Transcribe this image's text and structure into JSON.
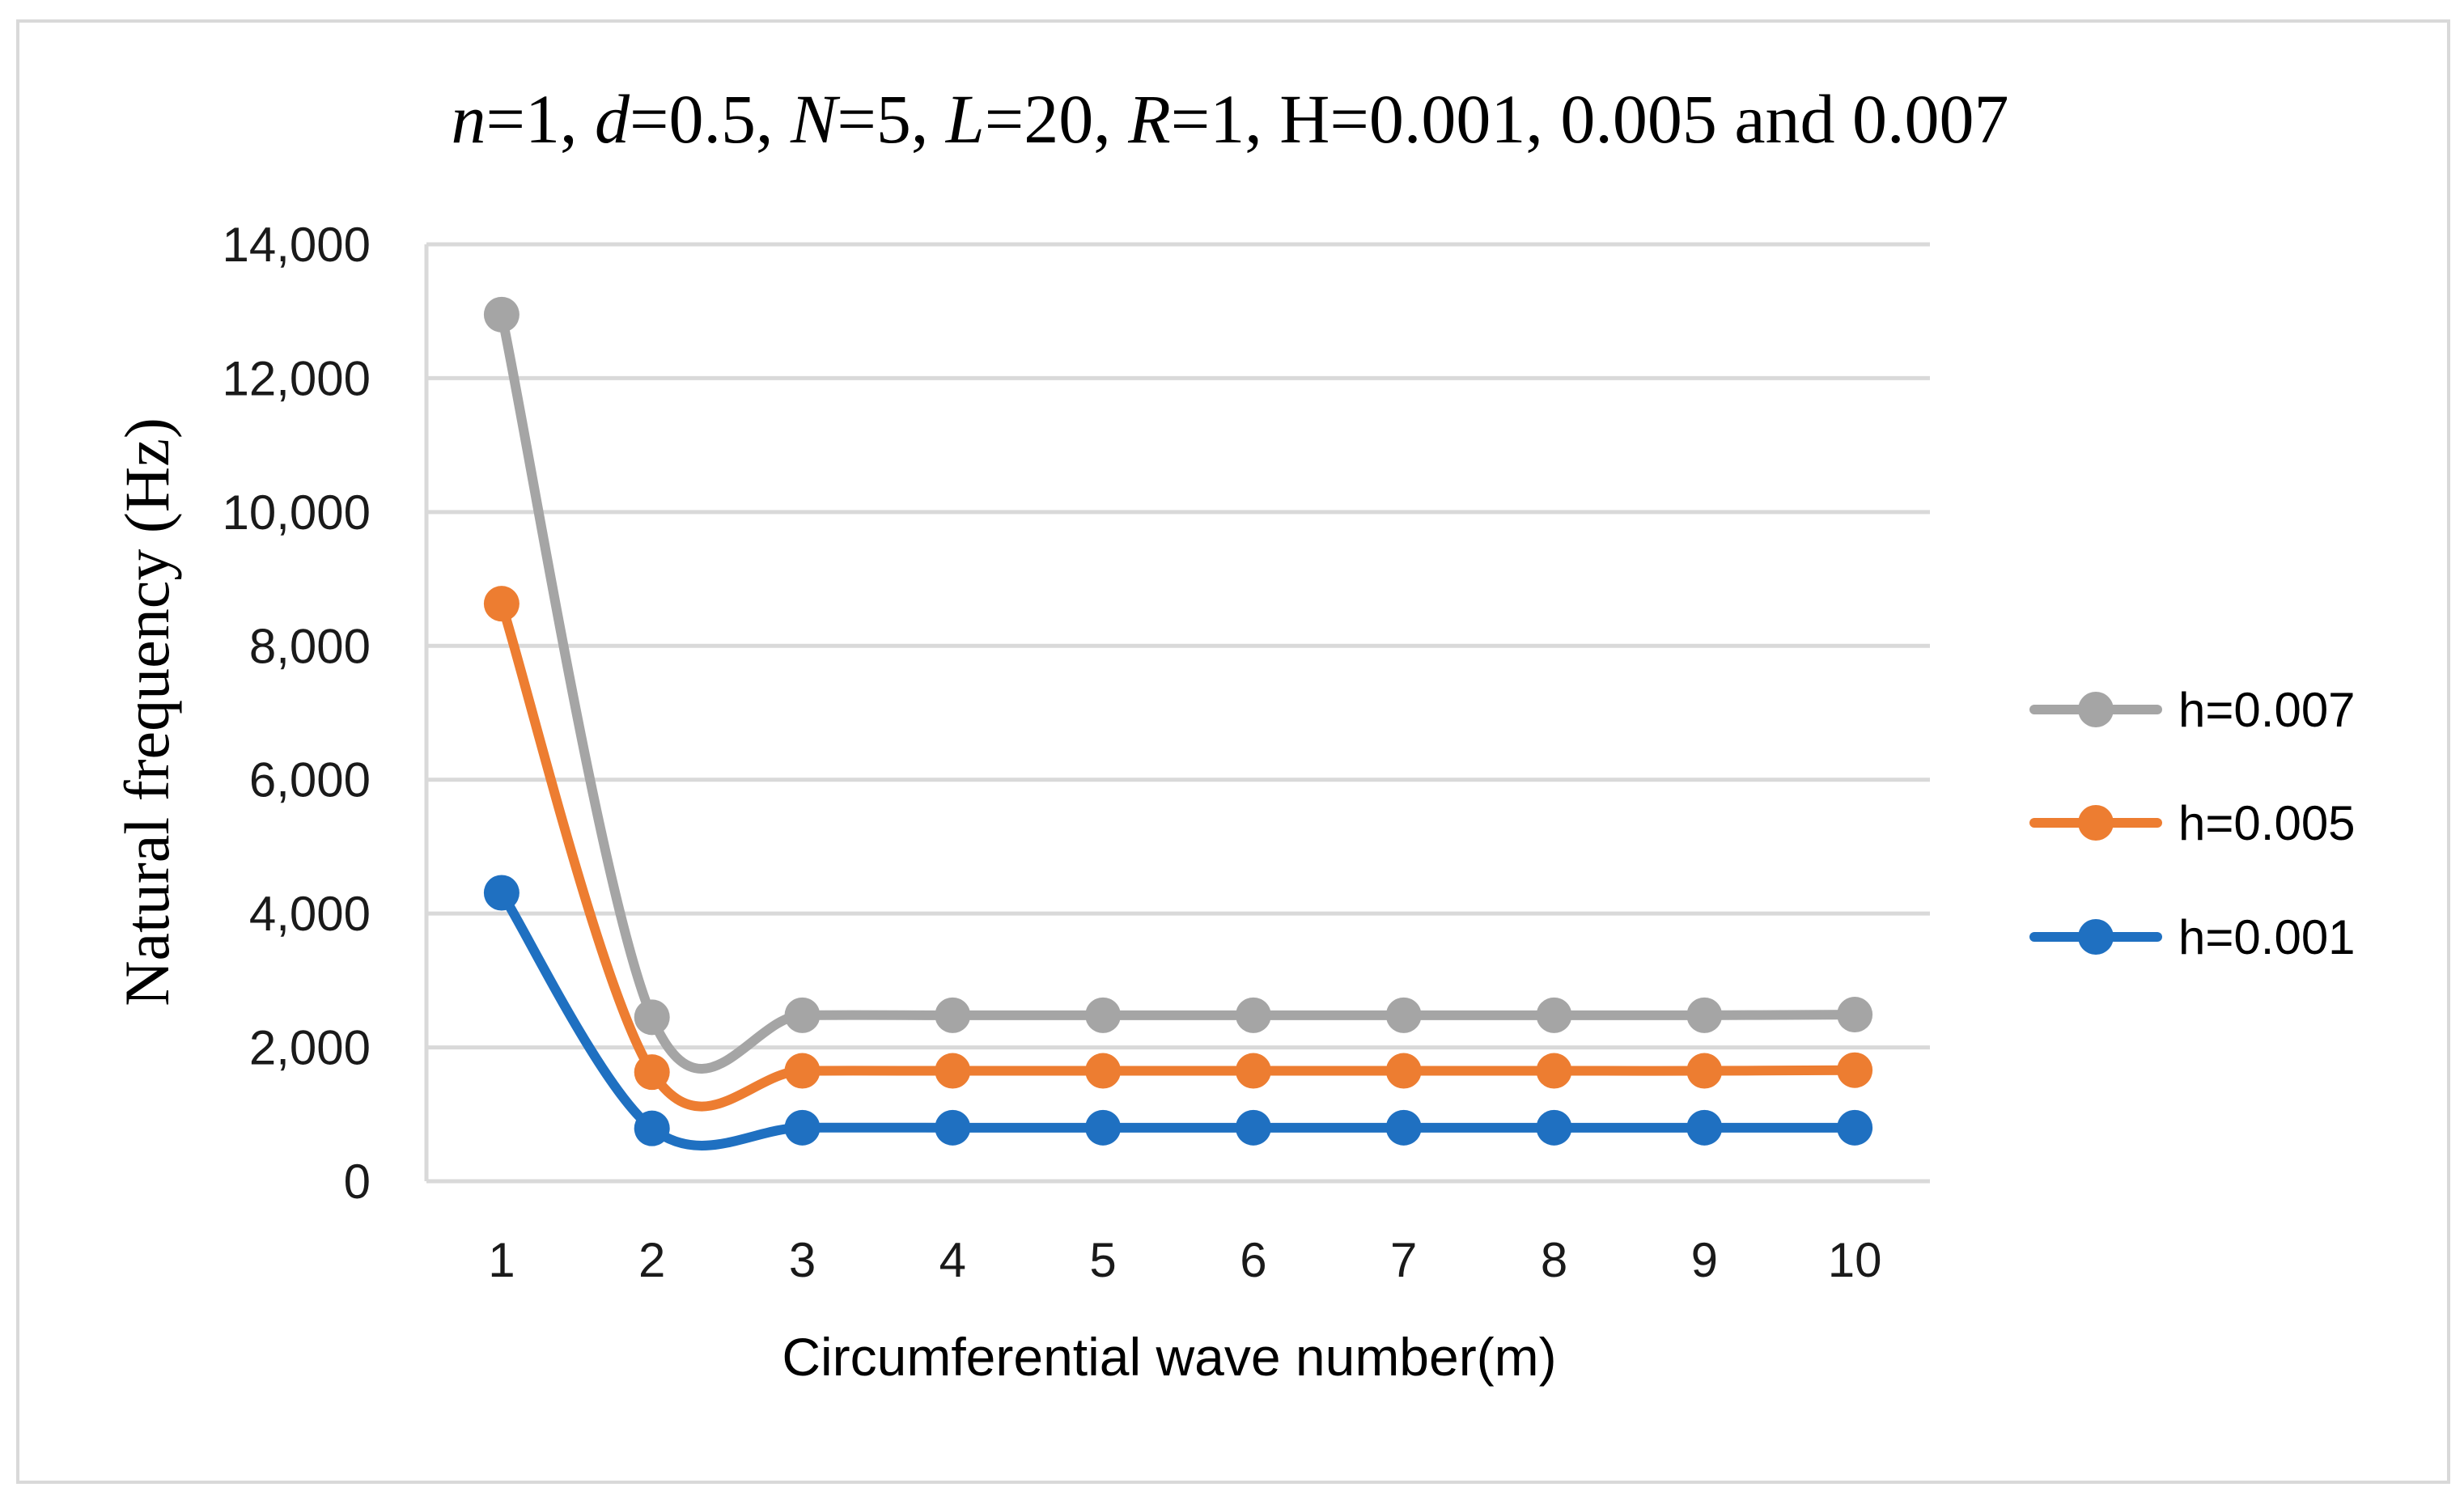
{
  "chart_data": {
    "type": "line",
    "title": {
      "parts": [
        {
          "text": "n",
          "italic": true
        },
        {
          "text": "=1, ",
          "italic": false
        },
        {
          "text": "d",
          "italic": true
        },
        {
          "text": "=0.5, ",
          "italic": false
        },
        {
          "text": "N",
          "italic": true
        },
        {
          "text": "=5, ",
          "italic": false
        },
        {
          "text": "L",
          "italic": true
        },
        {
          "text": "=20, ",
          "italic": false
        },
        {
          "text": "R",
          "italic": true
        },
        {
          "text": "=1, H=0.001, 0.005 and 0.007",
          "italic": false
        }
      ]
    },
    "xlabel": "Circumferential wave number(m)",
    "ylabel": "Natural frequency (Hz)",
    "categories": [
      "1",
      "2",
      "3",
      "4",
      "5",
      "6",
      "7",
      "8",
      "9",
      "10"
    ],
    "ylim": [
      0,
      14000
    ],
    "yticks": [
      0,
      2000,
      4000,
      6000,
      8000,
      10000,
      12000,
      14000
    ],
    "ytick_labels": [
      "0",
      "2,000",
      "4,000",
      "6,000",
      "8,000",
      "10,000",
      "12,000",
      "14,000"
    ],
    "grid": true,
    "legend_position": "right",
    "series": [
      {
        "name": "h=0.007",
        "color": "#a5a5a5",
        "values": [
          12950,
          2450,
          2480,
          2480,
          2480,
          2480,
          2480,
          2480,
          2480,
          2490
        ]
      },
      {
        "name": "h=0.005",
        "color": "#ed7d31",
        "values": [
          8630,
          1630,
          1650,
          1650,
          1650,
          1650,
          1650,
          1650,
          1650,
          1660
        ]
      },
      {
        "name": "h=0.001",
        "color": "#1f70c1",
        "values": [
          4310,
          790,
          800,
          800,
          800,
          800,
          800,
          800,
          800,
          800
        ]
      }
    ]
  },
  "colors": {
    "gridline": "#d9d9d9",
    "frame": "#d9d9d9",
    "axis_line": "#d9d9d9"
  }
}
